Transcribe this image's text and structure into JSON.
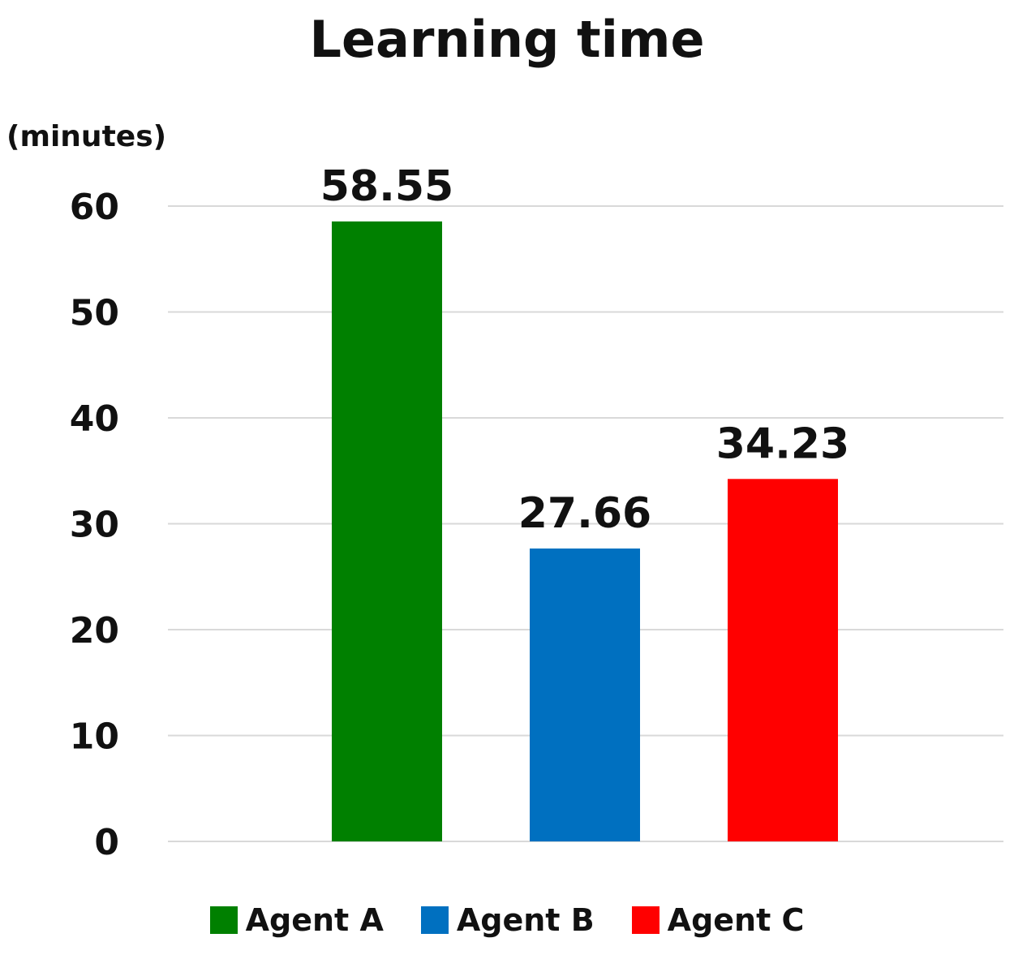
{
  "chart_data": {
    "type": "bar",
    "title": "Learning time",
    "ylabel": "(minutes)",
    "xlabel": "",
    "categories": [
      "Agent A",
      "Agent B",
      "Agent C"
    ],
    "values": [
      58.55,
      27.66,
      34.23
    ],
    "data_labels": [
      "58.55",
      "27.66",
      "34.23"
    ],
    "colors": [
      "#008000",
      "#0070C0",
      "#FF0000"
    ],
    "ylim": [
      0,
      60
    ],
    "yticks": [
      0,
      10,
      20,
      30,
      40,
      50,
      60
    ],
    "grid": true,
    "legend_position": "bottom"
  }
}
